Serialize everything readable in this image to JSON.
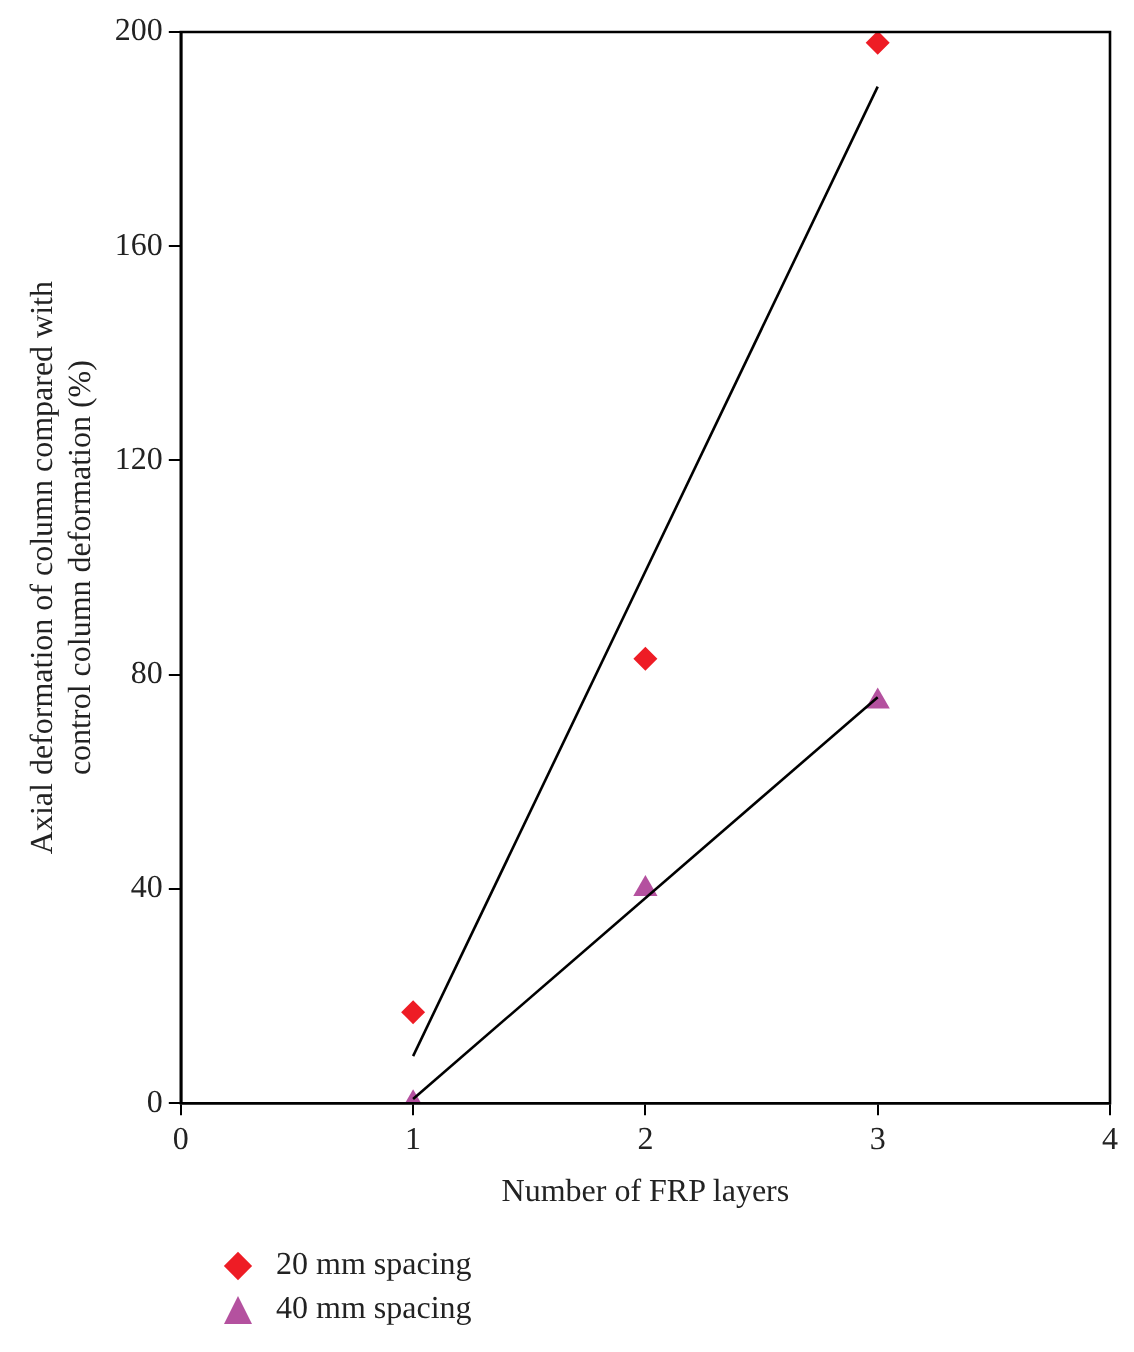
{
  "chart_data": {
    "type": "scatter",
    "xlabel": "Number of FRP layers",
    "ylabel": "Axial deformation of column compared with control column deformation (%)",
    "xlim": [
      0,
      4
    ],
    "xticks": [
      0,
      1,
      2,
      3,
      4
    ],
    "ylim": [
      0,
      200
    ],
    "yticks": [
      0,
      40,
      80,
      120,
      160,
      200
    ],
    "grid": false,
    "legend": "bottom left",
    "series": [
      {
        "name": "20 mm spacing",
        "color": "#ee1c25",
        "marker": "diamond",
        "x": [
          1,
          2,
          3
        ],
        "values": [
          17,
          83,
          198
        ]
      },
      {
        "name": "40 mm spacing",
        "color": "#b4519f",
        "marker": "triangle",
        "x": [
          1,
          2,
          3
        ],
        "values": [
          0,
          40,
          75
        ]
      },
      {
        "type": "line",
        "color": "#000000",
        "marker": "none",
        "x": [
          1,
          3
        ],
        "values": [
          8.8,
          189.8
        ]
      },
      {
        "type": "line",
        "color": "#000000",
        "marker": "none",
        "x": [
          1,
          3
        ],
        "values": [
          0.8,
          75.8
        ]
      }
    ]
  }
}
